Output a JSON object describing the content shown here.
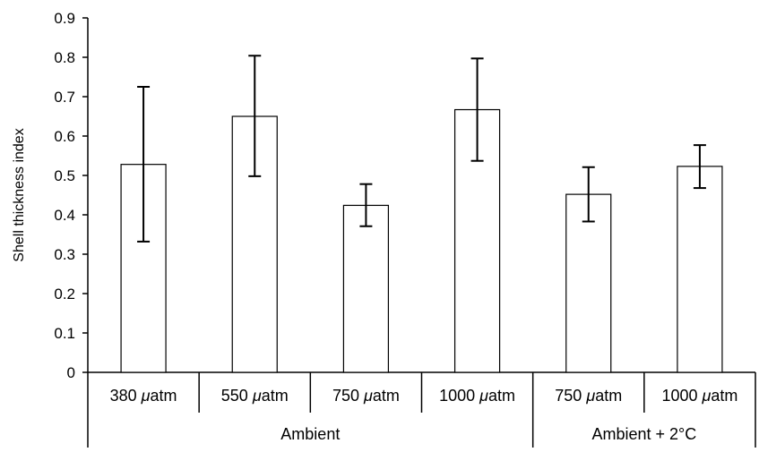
{
  "chart_data": {
    "type": "bar",
    "title": "",
    "ylabel": "Shell thickness index",
    "xlabel": "",
    "ylim": [
      0,
      0.9
    ],
    "y_ticks": [
      "0",
      "0.1",
      "0.2",
      "0.3",
      "0.4",
      "0.5",
      "0.6",
      "0.7",
      "0.8",
      "0.9"
    ],
    "grid": false,
    "legend": "none",
    "categories": [
      "380 μatm",
      "550 μatm",
      "750 μatm",
      "1000 μatm",
      "750 μatm",
      "1000 μatm"
    ],
    "category_parts": [
      {
        "number": "380",
        "unit": "μatm"
      },
      {
        "number": "550",
        "unit": "μatm"
      },
      {
        "number": "750",
        "unit": "μatm"
      },
      {
        "number": "1000",
        "unit": "μatm"
      },
      {
        "number": "750",
        "unit": "μatm"
      },
      {
        "number": "1000",
        "unit": "μatm"
      }
    ],
    "values": [
      0.528,
      0.65,
      0.424,
      0.667,
      0.452,
      0.523
    ],
    "error_upper": [
      0.725,
      0.804,
      0.478,
      0.797,
      0.521,
      0.577
    ],
    "error_lower": [
      0.332,
      0.498,
      0.371,
      0.537,
      0.383,
      0.468
    ],
    "groups": [
      {
        "label": "Ambient",
        "span": [
          0,
          3
        ]
      },
      {
        "label": "Ambient + 2°C",
        "span": [
          4,
          5
        ]
      }
    ],
    "colors": {
      "bar_fill": "#ffffff",
      "bar_stroke": "#000000",
      "axis": "#000000"
    }
  }
}
